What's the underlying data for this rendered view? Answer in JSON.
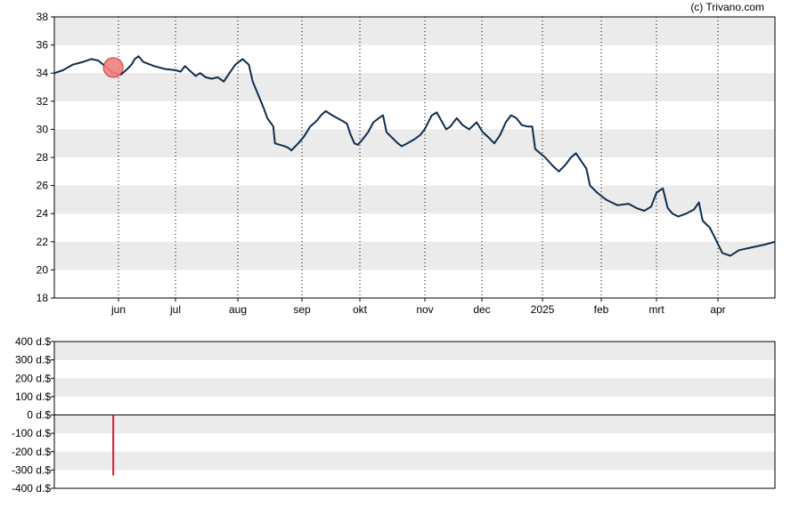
{
  "credit": "(c) Trivano.com",
  "colors": {
    "line": "#0d2e4e",
    "band": "#ebebeb",
    "marker_fill": "#f08080",
    "marker_stroke": "#d02020",
    "volume_bar": "#d81b2b",
    "axis": "#000000"
  },
  "chart_data": [
    {
      "type": "line",
      "x_ticks": [
        "jun",
        "jul",
        "aug",
        "sep",
        "okt",
        "nov",
        "dec",
        "2025",
        "feb",
        "mrt",
        "apr"
      ],
      "ylim": [
        18,
        38
      ],
      "y_ticks": [
        18,
        20,
        22,
        24,
        26,
        28,
        30,
        32,
        34,
        36,
        38
      ],
      "grid": "alternating horizontal bands, dotted vertical gridlines at month starts",
      "series": [
        {
          "values": [
            34.0,
            34.2,
            34.6,
            34.8,
            35.0,
            34.9,
            34.5,
            34.3,
            34.1,
            34.0,
            33.9,
            34.3,
            34.6,
            35.0,
            35.2,
            34.8,
            34.5,
            34.3,
            34.2,
            34.1,
            34.5,
            34.2,
            33.8,
            34.0,
            33.7,
            33.6,
            33.7,
            33.4,
            34.0,
            34.6,
            35.0,
            34.6,
            33.4,
            32.5,
            31.5,
            30.8,
            30.2,
            29.0,
            28.8,
            28.7,
            28.5,
            29.0,
            29.5,
            30.2,
            30.6,
            31.0,
            31.3,
            31.0,
            30.8,
            30.6,
            30.4,
            29.6,
            29.0,
            28.9,
            29.3,
            29.8,
            30.5,
            30.8,
            31.0,
            29.8,
            29.3,
            29.0,
            28.8,
            29.0,
            29.3,
            29.6,
            30.0,
            31.0,
            31.2,
            30.6,
            30.0,
            30.2,
            30.8,
            30.3,
            30.0,
            30.5,
            29.8,
            29.4,
            29.0,
            29.6,
            30.5,
            31.0,
            30.8,
            30.3,
            30.2,
            30.2,
            28.6,
            28.0,
            27.4,
            27.0,
            27.5,
            28.0,
            28.3,
            27.8,
            27.2,
            26.0,
            25.5,
            25.0,
            24.8,
            24.6,
            24.7,
            24.4,
            24.2,
            24.5,
            25.5,
            25.8,
            24.4,
            24.0,
            23.8,
            24.0,
            24.3,
            24.8,
            23.5,
            23.0,
            22.2,
            21.2,
            21.0,
            21.4,
            21.6,
            21.8,
            22.0
          ],
          "x_positions": [
            0,
            0.0105,
            0.0225,
            0.0353,
            0.0451,
            0.0536,
            0.0622,
            0.0667,
            0.0695,
            0.0744,
            0.0818,
            0.0895,
            0.0945,
            0.0985,
            0.1033,
            0.1089,
            0.1224,
            0.1353,
            0.1488,
            0.1547,
            0.1601,
            0.1655,
            0.1732,
            0.1787,
            0.1856,
            0.1928,
            0.2003,
            0.2076,
            0.2146,
            0.2218,
            0.2306,
            0.2384,
            0.2431,
            0.2495,
            0.2566,
            0.261,
            0.2683,
            0.2704,
            0.2822,
            0.2863,
            0.2904,
            0.2988,
            0.3061,
            0.3136,
            0.3214,
            0.3268,
            0.3325,
            0.3405,
            0.3466,
            0.353,
            0.3585,
            0.3631,
            0.3677,
            0.372,
            0.3779,
            0.3844,
            0.391,
            0.3976,
            0.4028,
            0.407,
            0.4157,
            0.421,
            0.4258,
            0.4323,
            0.4414,
            0.4485,
            0.4537,
            0.4626,
            0.4686,
            0.4743,
            0.4801,
            0.4854,
            0.493,
            0.5003,
            0.5083,
            0.5175,
            0.525,
            0.5325,
            0.5391,
            0.5463,
            0.5532,
            0.5596,
            0.5662,
            0.5729,
            0.5798,
            0.5856,
            0.5892,
            0.6014,
            0.6108,
            0.6182,
            0.6266,
            0.6329,
            0.6392,
            0.6449,
            0.6519,
            0.6563,
            0.665,
            0.676,
            0.6829,
            0.69,
            0.7036,
            0.7133,
            0.7229,
            0.7313,
            0.7379,
            0.7456,
            0.7516,
            0.7574,
            0.7645,
            0.7742,
            0.7838,
            0.7898,
            0.7944,
            0.8032,
            0.8101,
            0.8185,
            0.8283,
            0.8388,
            0.8546,
            0.8704,
            0.883
          ]
        }
      ],
      "markers": [
        {
          "x_position": 0.0722,
          "value": 34.4
        }
      ]
    },
    {
      "type": "bar",
      "ylim": [
        -400,
        400
      ],
      "y_ticks": [
        "400 d.$",
        "300 d.$",
        "200 d.$",
        "100 d.$",
        "0 d.$",
        "-100 d.$",
        "-200 d.$",
        "-300 d.$",
        "-400 d.$"
      ],
      "y_tick_values": [
        400,
        300,
        200,
        100,
        0,
        -100,
        -200,
        -300,
        -400
      ],
      "grid": "alternating horizontal bands",
      "bars": [
        {
          "x_position": 0.0722,
          "value": -330
        }
      ]
    }
  ]
}
